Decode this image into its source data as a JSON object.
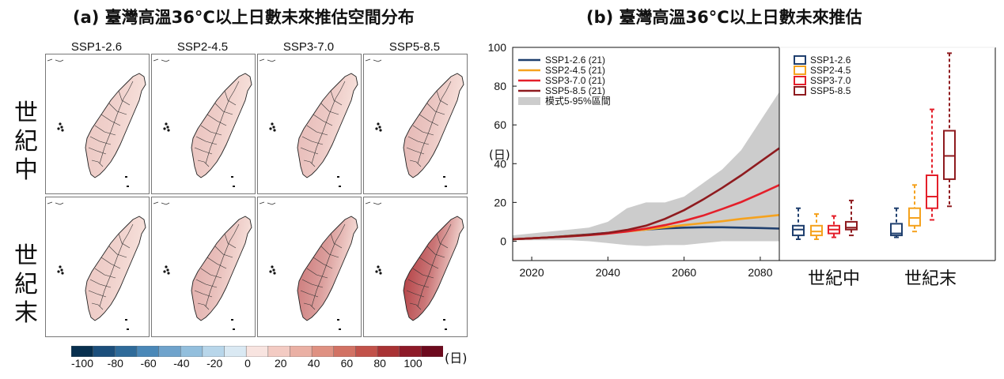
{
  "panel_a": {
    "title": "(a) 臺灣高溫36°C以上日數未來推估空間分布",
    "scenarios": [
      "SSP1-2.6",
      "SSP2-4.5",
      "SSP3-7.0",
      "SSP5-8.5"
    ],
    "rows": [
      {
        "label": "世紀中",
        "intensity": [
          0.15,
          0.18,
          0.22,
          0.25
        ]
      },
      {
        "label": "世紀末",
        "intensity": [
          0.15,
          0.3,
          0.6,
          0.95
        ]
      }
    ],
    "colorbar": {
      "ticks": [
        "-100",
        "-80",
        "-60",
        "-40",
        "-20",
        "0",
        "20",
        "40",
        "60",
        "80",
        "100"
      ],
      "unit": "(日)",
      "colors": [
        "#08304f",
        "#1c4f7c",
        "#2f6b9a",
        "#4a88b8",
        "#6fa3cc",
        "#93bfdd",
        "#b8d6ea",
        "#dae9f3",
        "#f8e4e0",
        "#f3cbc3",
        "#eab0a4",
        "#df9182",
        "#d27264",
        "#c2524a",
        "#a93335",
        "#8e1a28",
        "#6d0a1e"
      ]
    }
  },
  "panel_b": {
    "title": "(b) 臺灣高溫36°C以上日數未來推估",
    "y_unit": "(日)",
    "legend_left": [
      "SSP1-2.6 (21)",
      "SSP2-4.5 (21)",
      "SSP3-7.0 (21)",
      "SSP5-8.5 (21)",
      "模式5-95%區間"
    ],
    "legend_right": [
      "SSP1-2.6",
      "SSP2-4.5",
      "SSP3-7.0",
      "SSP5-8.5"
    ],
    "period_labels": [
      "世紀中",
      "世紀末"
    ]
  },
  "colors": {
    "ssp126": "#1f3f6e",
    "ssp245": "#f5a21e",
    "ssp370": "#e41f2a",
    "ssp585": "#8f1b1f",
    "band": "#cccccc"
  },
  "chart_data": [
    {
      "type": "line",
      "title": "(b) 臺灣高溫36°C以上日數未來推估",
      "ylabel": "(日)",
      "xlim": [
        2015,
        2085
      ],
      "ylim": [
        -10,
        100
      ],
      "xticks": [
        2020,
        2040,
        2060,
        2080
      ],
      "yticks": [
        0,
        20,
        40,
        60,
        80,
        100
      ],
      "x": [
        2015,
        2020,
        2025,
        2030,
        2035,
        2040,
        2045,
        2050,
        2055,
        2060,
        2065,
        2070,
        2075,
        2080,
        2085
      ],
      "series": [
        {
          "name": "SSP1-2.6 (21)",
          "values": [
            1,
            1.5,
            2,
            2.8,
            3.5,
            4.3,
            5.2,
            6,
            6.6,
            7,
            7.2,
            7.2,
            7,
            6.8,
            6.5
          ]
        },
        {
          "name": "SSP2-4.5 (21)",
          "values": [
            1,
            1.5,
            2,
            2.7,
            3.3,
            4.1,
            5,
            6,
            7.2,
            8.3,
            9.3,
            10.3,
            11.5,
            12.5,
            13.5
          ]
        },
        {
          "name": "SSP3-7.0 (21)",
          "values": [
            1,
            1.5,
            2,
            2.5,
            3.1,
            3.9,
            5,
            6.5,
            8.3,
            10.5,
            13.2,
            16.6,
            20.2,
            24.5,
            29
          ]
        },
        {
          "name": "SSP5-8.5 (21)",
          "values": [
            1,
            1.5,
            2,
            2.6,
            3.3,
            4.3,
            5.8,
            8,
            11.5,
            16,
            21.5,
            27.5,
            34,
            41,
            48
          ]
        }
      ],
      "band": {
        "name": "模式5-95%區間",
        "lower": [
          0.5,
          0.5,
          0.5,
          0.5,
          0,
          -1,
          -2,
          -2.5,
          -2,
          -2,
          -1,
          0,
          0,
          0,
          0
        ],
        "upper": [
          3,
          4,
          5,
          6,
          7,
          10,
          17,
          20,
          20,
          23,
          30,
          37,
          47,
          62,
          77
        ]
      },
      "legend": "top-left",
      "grid": false
    },
    {
      "type": "box",
      "ylim": [
        -10,
        100
      ],
      "categories": [
        "世紀中",
        "世紀末"
      ],
      "series": [
        {
          "name": "SSP1-2.6",
          "boxes": [
            {
              "min": 1,
              "q1": 3,
              "median": 6,
              "q3": 8,
              "max": 17
            },
            {
              "min": 2,
              "q1": 3,
              "median": 4,
              "q3": 9,
              "max": 17
            }
          ]
        },
        {
          "name": "SSP2-4.5",
          "boxes": [
            {
              "min": 1,
              "q1": 3,
              "median": 5,
              "q3": 8,
              "max": 14
            },
            {
              "min": 5,
              "q1": 8,
              "median": 12,
              "q3": 17,
              "max": 29
            }
          ]
        },
        {
          "name": "SSP3-7.0",
          "boxes": [
            {
              "min": 2,
              "q1": 4,
              "median": 6,
              "q3": 8,
              "max": 13
            },
            {
              "min": 11,
              "q1": 17,
              "median": 23,
              "q3": 34,
              "max": 68
            }
          ]
        },
        {
          "name": "SSP5-8.5",
          "boxes": [
            {
              "min": 3,
              "q1": 6,
              "median": 7,
              "q3": 10,
              "max": 21
            },
            {
              "min": 18,
              "q1": 32,
              "median": 44,
              "q3": 57,
              "max": 97
            }
          ]
        }
      ],
      "legend": "top-left"
    }
  ]
}
